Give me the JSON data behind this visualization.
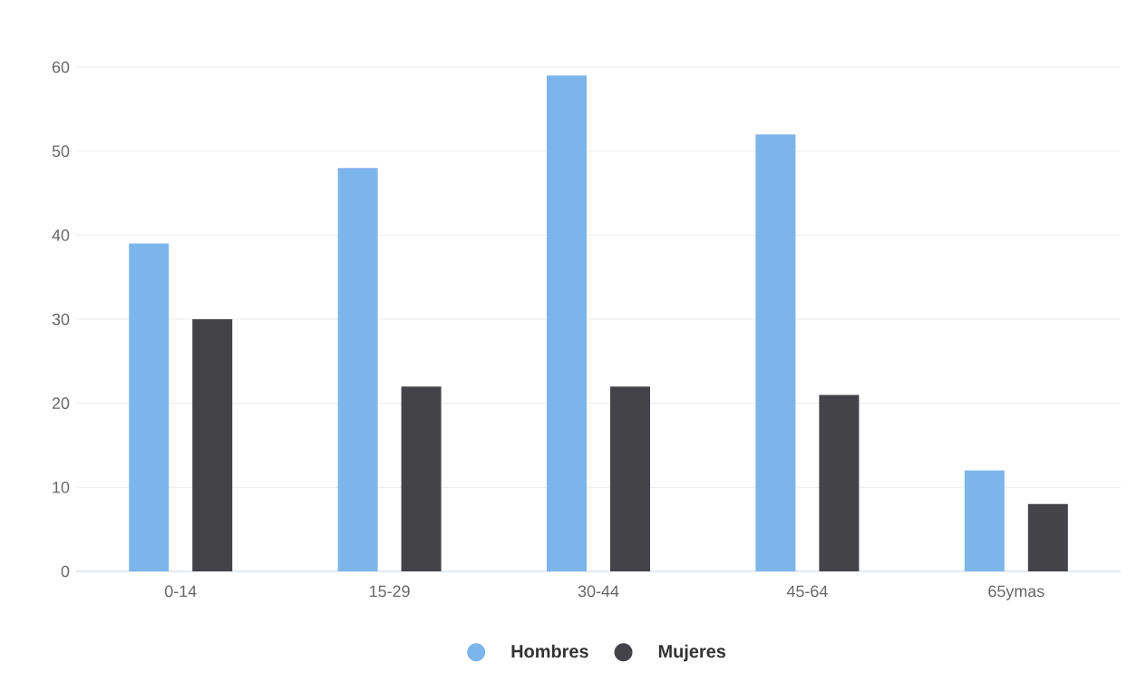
{
  "chart_data": {
    "type": "bar",
    "categories": [
      "0-14",
      "15-29",
      "30-44",
      "45-64",
      "65ymas"
    ],
    "series": [
      {
        "name": "Hombres",
        "color": "#7cb5ec",
        "values": [
          39,
          48,
          59,
          52,
          12
        ]
      },
      {
        "name": "Mujeres",
        "color": "#434348",
        "values": [
          30,
          22,
          22,
          21,
          8
        ]
      }
    ],
    "ylim": [
      0,
      60
    ],
    "yticks": [
      0,
      10,
      20,
      30,
      40,
      50,
      60
    ],
    "grid": "y",
    "legend": "bottom"
  }
}
